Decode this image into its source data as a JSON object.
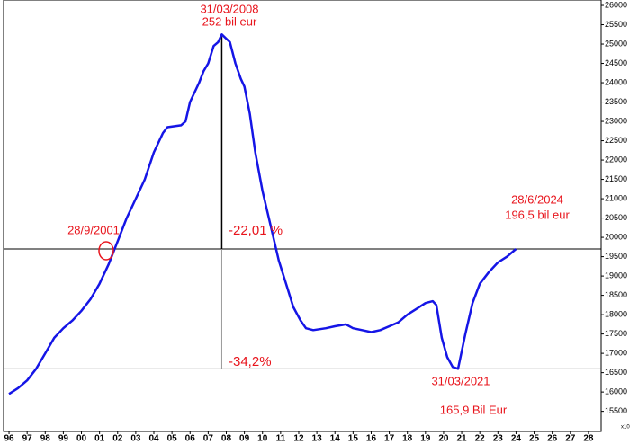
{
  "chart_data": {
    "type": "line",
    "x": [
      1996.0,
      1996.5,
      1997.0,
      1997.5,
      1998.0,
      1998.5,
      1999.0,
      1999.5,
      2000.0,
      2000.5,
      2001.0,
      2001.5,
      2002.0,
      2002.5,
      2003.0,
      2003.5,
      2004.0,
      2004.5,
      2004.75,
      2005.5,
      2005.75,
      2006.0,
      2006.5,
      2006.75,
      2007.0,
      2007.3,
      2007.55,
      2007.75,
      2008.2,
      2008.5,
      2008.8,
      2009.0,
      2009.3,
      2009.6,
      2010.0,
      2010.5,
      2010.9,
      2011.3,
      2011.7,
      2012.1,
      2012.4,
      2012.8,
      2013.5,
      2014.0,
      2014.6,
      2015.0,
      2015.5,
      2016.0,
      2016.5,
      2017.0,
      2017.5,
      2018.0,
      2018.5,
      2019.0,
      2019.4,
      2019.6,
      2019.9,
      2020.2,
      2020.5,
      2020.8,
      2021.2,
      2021.6,
      2022.0,
      2022.5,
      2023.0,
      2023.5,
      2024.0
    ],
    "series": [
      {
        "name": "series",
        "color": "#1515e6",
        "values": [
          15950,
          16100,
          16300,
          16600,
          17000,
          17400,
          17650,
          17850,
          18100,
          18400,
          18800,
          19300,
          19900,
          20500,
          21000,
          21500,
          22200,
          22700,
          22850,
          22900,
          23000,
          23500,
          24000,
          24300,
          24500,
          24950,
          25050,
          25250,
          25050,
          24500,
          24100,
          23900,
          23200,
          22200,
          21200,
          20200,
          19400,
          18800,
          18200,
          17850,
          17650,
          17600,
          17650,
          17700,
          17750,
          17650,
          17600,
          17550,
          17600,
          17700,
          17800,
          18000,
          18150,
          18300,
          18350,
          18250,
          17400,
          16900,
          16650,
          16600,
          17500,
          18300,
          18800,
          19100,
          19350,
          19500,
          19700
        ]
      }
    ],
    "xlim": [
      1995.7,
      2028.7
    ],
    "xticks": [
      {
        "value": 1996,
        "label": "96"
      },
      {
        "value": 1997,
        "label": "97"
      },
      {
        "value": 1998,
        "label": "98"
      },
      {
        "value": 1999,
        "label": "99"
      },
      {
        "value": 2000,
        "label": "00"
      },
      {
        "value": 2001,
        "label": "01"
      },
      {
        "value": 2002,
        "label": "02"
      },
      {
        "value": 2003,
        "label": "03"
      },
      {
        "value": 2004,
        "label": "04"
      },
      {
        "value": 2005,
        "label": "05"
      },
      {
        "value": 2006,
        "label": "06"
      },
      {
        "value": 2007,
        "label": "07"
      },
      {
        "value": 2008,
        "label": "08"
      },
      {
        "value": 2009,
        "label": "09"
      },
      {
        "value": 2010,
        "label": "10"
      },
      {
        "value": 2011,
        "label": "11"
      },
      {
        "value": 2012,
        "label": "12"
      },
      {
        "value": 2013,
        "label": "13"
      },
      {
        "value": 2014,
        "label": "14"
      },
      {
        "value": 2015,
        "label": "15"
      },
      {
        "value": 2016,
        "label": "16"
      },
      {
        "value": 2017,
        "label": "17"
      },
      {
        "value": 2018,
        "label": "18"
      },
      {
        "value": 2019,
        "label": "19"
      },
      {
        "value": 2020,
        "label": "20"
      },
      {
        "value": 2021,
        "label": "21"
      },
      {
        "value": 2022,
        "label": "22"
      },
      {
        "value": 2023,
        "label": "23"
      },
      {
        "value": 2024,
        "label": "24"
      },
      {
        "value": 2025,
        "label": "25"
      },
      {
        "value": 2026,
        "label": "26"
      },
      {
        "value": 2027,
        "label": "27"
      },
      {
        "value": 2028,
        "label": "28"
      }
    ],
    "ylim": [
      14980,
      26140
    ],
    "yticks": [
      15500,
      16000,
      16500,
      17000,
      17500,
      18000,
      18500,
      19000,
      19500,
      20000,
      20500,
      21000,
      21500,
      22000,
      22500,
      23000,
      23500,
      24000,
      24500,
      25000,
      25500,
      26000
    ],
    "y_multiplier_label": "x10",
    "reference_lines": {
      "y": [
        19700,
        16600
      ],
      "x": 2007.75
    },
    "annotations": {
      "peak_date": "31/03/2008",
      "peak_value": "252  bil eur",
      "cross_date": "28/9/2001",
      "drop_1": "-22,01 %",
      "drop_2": "-34,2%",
      "trough_date": "31/03/2021",
      "trough_value": "165,9 Bil Eur",
      "last_date": "28/6/2024",
      "last_value": "196,5 bil eur"
    }
  }
}
